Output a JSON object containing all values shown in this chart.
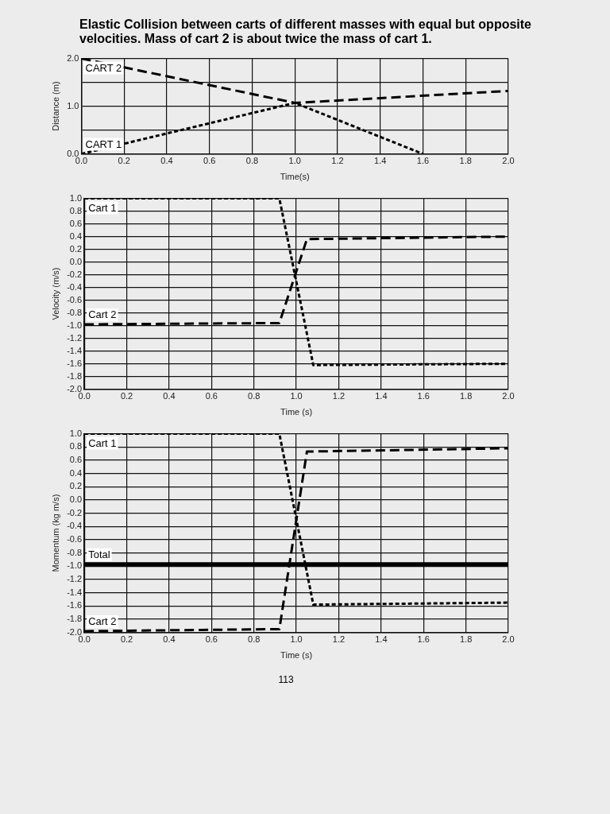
{
  "chart_data": [
    {
      "type": "line",
      "title": "Elastic Collision between carts of different masses with equal but opposite velocities. Mass of cart 2 is about twice the mass of cart 1.",
      "xlabel": "Time(s)",
      "ylabel": "Distance (m)",
      "xlim": [
        0,
        2
      ],
      "xticks": [
        {
          "value": 0,
          "label": "0.0"
        },
        {
          "value": 0.2,
          "label": "0.2"
        },
        {
          "value": 0.4,
          "label": "0.4"
        },
        {
          "value": 0.6,
          "label": "0.6"
        },
        {
          "value": 0.8,
          "label": "0.8"
        },
        {
          "value": 1,
          "label": "1.0"
        },
        {
          "value": 1.2,
          "label": "1.2"
        },
        {
          "value": 1.4,
          "label": "1.4"
        },
        {
          "value": 1.6,
          "label": "1.6"
        },
        {
          "value": 1.8,
          "label": "1.8"
        },
        {
          "value": 2,
          "label": "2.0"
        }
      ],
      "ylim": [
        0,
        2
      ],
      "yticks": [
        {
          "value": 0,
          "label": "0.0"
        },
        {
          "value": 0.5,
          "label": null
        },
        {
          "value": 1,
          "label": "1.0"
        },
        {
          "value": 1.5,
          "label": null
        },
        {
          "value": 2,
          "label": "2.0"
        }
      ],
      "grid": true,
      "legend": false,
      "marker": "none",
      "series": [
        {
          "name": "CART 2",
          "color": "#000000",
          "line_style": "dashed",
          "x": [
            0,
            1.0,
            2.0
          ],
          "values": [
            2.0,
            1.07,
            1.32
          ]
        },
        {
          "name": "CART 1",
          "color": "#000000",
          "line_style": "dotted",
          "x": [
            0,
            1.0,
            1.6
          ],
          "values": [
            0.0,
            1.07,
            0.0
          ]
        }
      ]
    },
    {
      "type": "line",
      "xlabel": "Time (s)",
      "ylabel": "Velocity (m/s)",
      "xlim": [
        0,
        2
      ],
      "xticks": [
        {
          "value": 0,
          "label": "0.0"
        },
        {
          "value": 0.2,
          "label": "0.2"
        },
        {
          "value": 0.4,
          "label": "0.4"
        },
        {
          "value": 0.6,
          "label": "0.6"
        },
        {
          "value": 0.8,
          "label": "0.8"
        },
        {
          "value": 1,
          "label": "1.0"
        },
        {
          "value": 1.2,
          "label": "1.2"
        },
        {
          "value": 1.4,
          "label": "1.4"
        },
        {
          "value": 1.6,
          "label": "1.6"
        },
        {
          "value": 1.8,
          "label": "1.8"
        },
        {
          "value": 2,
          "label": "2.0"
        }
      ],
      "ylim": [
        -2,
        1
      ],
      "yticks": [
        {
          "value": -2,
          "label": "-2.0"
        },
        {
          "value": -1.8,
          "label": "-1.8"
        },
        {
          "value": -1.6,
          "label": "-1.6"
        },
        {
          "value": -1.4,
          "label": "-1.4"
        },
        {
          "value": -1.2,
          "label": "-1.2"
        },
        {
          "value": -1,
          "label": "-1.0"
        },
        {
          "value": -0.8,
          "label": "-0.8"
        },
        {
          "value": -0.6,
          "label": "-0.6"
        },
        {
          "value": -0.4,
          "label": "-0.4"
        },
        {
          "value": -0.2,
          "label": "-0.2"
        },
        {
          "value": 0,
          "label": "0.0"
        },
        {
          "value": 0.2,
          "label": "0.2"
        },
        {
          "value": 0.4,
          "label": "0.4"
        },
        {
          "value": 0.6,
          "label": "0.6"
        },
        {
          "value": 0.8,
          "label": "0.8"
        },
        {
          "value": 1,
          "label": "1.0"
        }
      ],
      "grid": true,
      "legend": false,
      "marker": "none",
      "series": [
        {
          "name": "Cart 1",
          "color": "#000000",
          "line_style": "dotted",
          "x": [
            0,
            0.92,
            1.08,
            2.0
          ],
          "values": [
            1.0,
            1.0,
            -1.62,
            -1.6
          ]
        },
        {
          "name": "Cart 2",
          "color": "#000000",
          "line_style": "dashed",
          "x": [
            0,
            0.92,
            1.05,
            2.0
          ],
          "values": [
            -0.98,
            -0.96,
            0.36,
            0.4
          ]
        }
      ]
    },
    {
      "type": "line",
      "xlabel": "Time (s)",
      "ylabel": "Momentum (kg m/s)",
      "xlim": [
        0,
        2
      ],
      "xticks": [
        {
          "value": 0,
          "label": "0.0"
        },
        {
          "value": 0.2,
          "label": "0.2"
        },
        {
          "value": 0.4,
          "label": "0.4"
        },
        {
          "value": 0.6,
          "label": "0.6"
        },
        {
          "value": 0.8,
          "label": "0.8"
        },
        {
          "value": 1,
          "label": "1.0"
        },
        {
          "value": 1.2,
          "label": "1.2"
        },
        {
          "value": 1.4,
          "label": "1.4"
        },
        {
          "value": 1.6,
          "label": "1.6"
        },
        {
          "value": 1.8,
          "label": "1.8"
        },
        {
          "value": 2,
          "label": "2.0"
        }
      ],
      "ylim": [
        -2,
        1
      ],
      "yticks": [
        {
          "value": -2,
          "label": "-2.0"
        },
        {
          "value": -1.8,
          "label": "-1.8"
        },
        {
          "value": -1.6,
          "label": "-1.6"
        },
        {
          "value": -1.4,
          "label": "-1.4"
        },
        {
          "value": -1.2,
          "label": "-1.2"
        },
        {
          "value": -1,
          "label": "-1.0"
        },
        {
          "value": -0.8,
          "label": "-0.8"
        },
        {
          "value": -0.6,
          "label": "-0.6"
        },
        {
          "value": -0.4,
          "label": "-0.4"
        },
        {
          "value": -0.2,
          "label": "-0.2"
        },
        {
          "value": 0,
          "label": "0.0"
        },
        {
          "value": 0.2,
          "label": "0.2"
        },
        {
          "value": 0.4,
          "label": "0.4"
        },
        {
          "value": 0.6,
          "label": "0.6"
        },
        {
          "value": 0.8,
          "label": "0.8"
        },
        {
          "value": 1,
          "label": "1.0"
        }
      ],
      "grid": true,
      "legend": false,
      "marker": "none",
      "annotations": [
        "113"
      ],
      "series": [
        {
          "name": "Cart 1",
          "color": "#000000",
          "line_style": "dotted",
          "x": [
            0,
            0.92,
            1.08,
            2.0
          ],
          "values": [
            1.0,
            1.0,
            -1.58,
            -1.55
          ]
        },
        {
          "name": "Total",
          "color": "#000000",
          "line_style": "solid",
          "x": [
            0,
            2.0
          ],
          "values": [
            -0.97,
            -0.97
          ]
        },
        {
          "name": "Cart 2",
          "color": "#000000",
          "line_style": "dashed",
          "x": [
            0,
            0.92,
            1.05,
            2.0
          ],
          "values": [
            -1.98,
            -1.95,
            0.73,
            0.78
          ]
        }
      ]
    }
  ]
}
